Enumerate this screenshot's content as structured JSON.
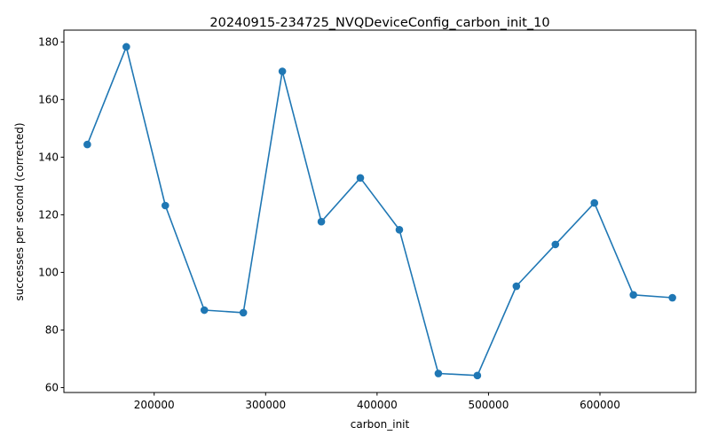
{
  "chart_data": {
    "type": "line",
    "title": "20240915-234725_NVQDeviceConfig_carbon_init_10",
    "xlabel": "carbon_init",
    "ylabel": "successes per second (corrected)",
    "xlim": [
      119000,
      686000
    ],
    "ylim": [
      58.3,
      184.1
    ],
    "xticks": [
      200000,
      300000,
      400000,
      500000,
      600000
    ],
    "xtick_labels": [
      "200000",
      "300000",
      "400000",
      "500000",
      "600000"
    ],
    "yticks": [
      60,
      80,
      100,
      120,
      140,
      160,
      180
    ],
    "ytick_labels": [
      "60",
      "80",
      "100",
      "120",
      "140",
      "160",
      "180"
    ],
    "grid": false,
    "legend": false,
    "line_color": "#1f77b4",
    "marker": "circle",
    "x": [
      140000,
      175000,
      210000,
      245000,
      280000,
      315000,
      350000,
      385000,
      420000,
      455000,
      490000,
      525000,
      560000,
      595000,
      630000,
      665000
    ],
    "y": [
      144.4,
      178.3,
      123.2,
      86.9,
      86.0,
      169.8,
      117.6,
      132.8,
      114.8,
      64.9,
      64.2,
      95.2,
      109.7,
      124.1,
      92.2,
      91.2
    ]
  }
}
